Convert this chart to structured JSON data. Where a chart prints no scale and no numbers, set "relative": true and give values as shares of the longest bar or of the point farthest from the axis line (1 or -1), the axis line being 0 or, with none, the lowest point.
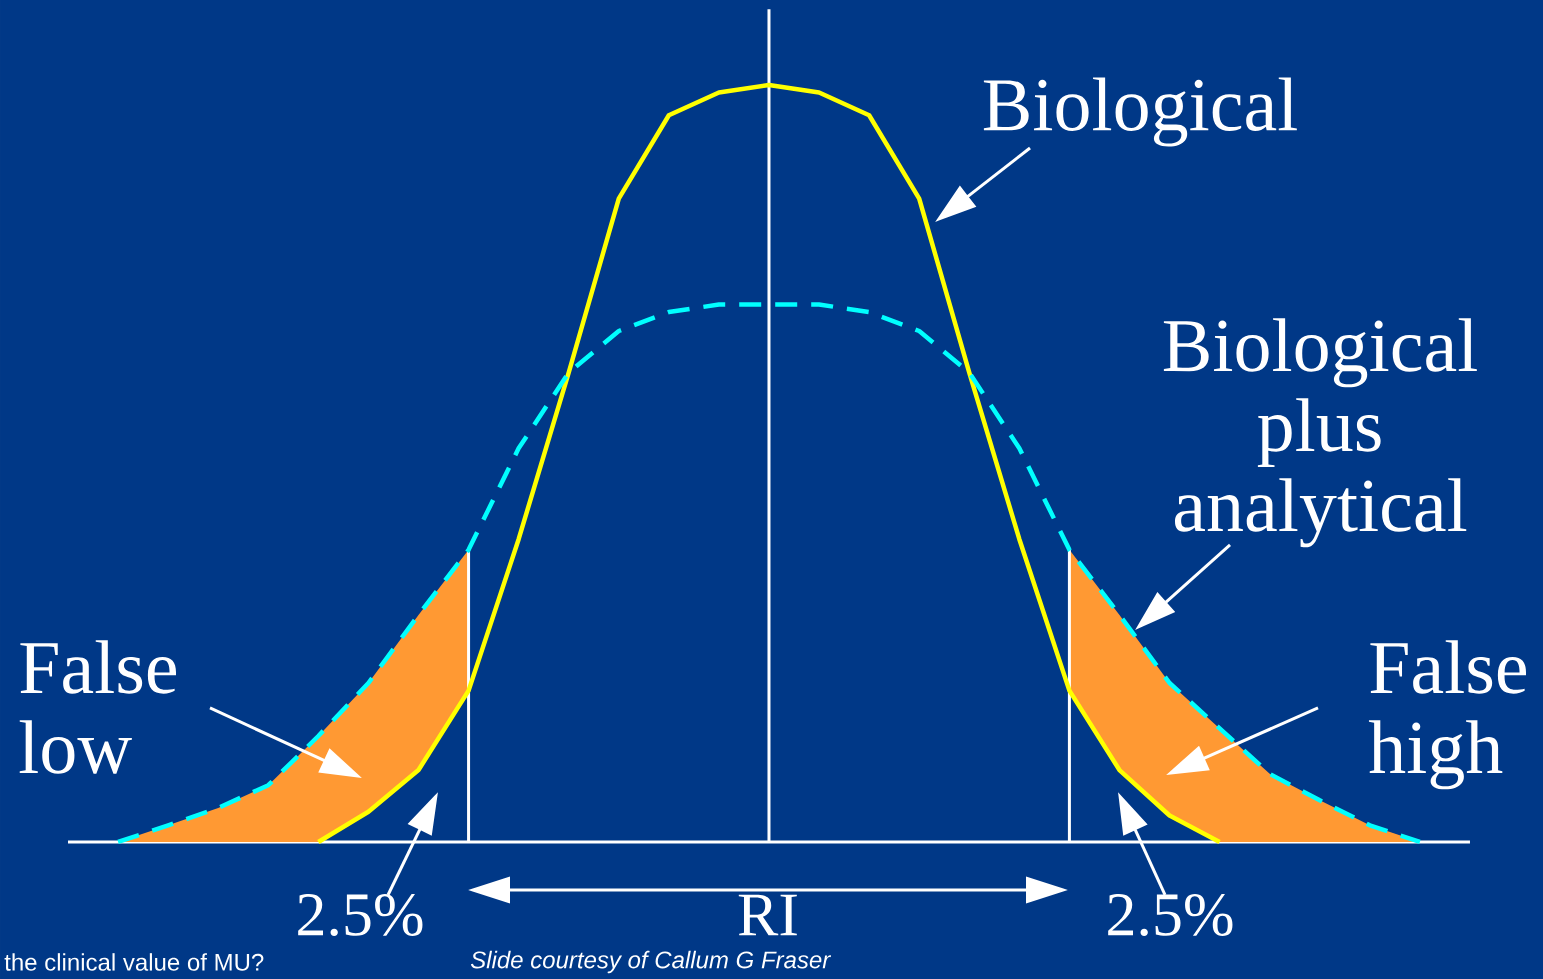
{
  "chart_data": {
    "type": "line",
    "relative": true,
    "categories": [
      null,
      null,
      null,
      null,
      null,
      null,
      null,
      null,
      null,
      null,
      null,
      null,
      null,
      null,
      null,
      null,
      null,
      null,
      null,
      null,
      null,
      null,
      null,
      null,
      null,
      null,
      null,
      null,
      null
    ],
    "series": [
      {
        "type": "area",
        "color": "#ff9933",
        "values": [
          null,
          0,
          0.022,
          0.045,
          0.075,
          0.14,
          0.21,
          0.3,
          0.386,
          null,
          null,
          null,
          null,
          null,
          null,
          null,
          null,
          null,
          null,
          null,
          0.386,
          0.3,
          0.21,
          0.15,
          0.09,
          0.055,
          0.022,
          0,
          null
        ]
      },
      {
        "color": "#ffff00",
        "line_style": "solid",
        "values": [
          null,
          null,
          null,
          null,
          null,
          0,
          0.04,
          0.095,
          0.2,
          0.4,
          0.62,
          0.85,
          0.96,
          0.99,
          1,
          0.99,
          0.96,
          0.85,
          0.62,
          0.4,
          0.2,
          0.095,
          0.035,
          0,
          null,
          null,
          null,
          null,
          null
        ]
      },
      {
        "color": "#00ffff",
        "line_style": "dashed",
        "values": [
          null,
          0,
          0.022,
          0.045,
          0.075,
          0.14,
          0.21,
          0.3,
          0.386,
          0.52,
          0.62,
          0.675,
          0.7,
          0.71,
          0.71,
          0.71,
          0.7,
          0.675,
          0.62,
          0.52,
          0.386,
          0.3,
          0.21,
          0.15,
          0.09,
          0.055,
          0.022,
          0,
          null
        ]
      }
    ],
    "annotations": [
      "Biological",
      "Biological plus analytical",
      "False low",
      "False high",
      "2.5%",
      "RI",
      "2.5%",
      "the clinical value of MU?",
      "Slide courtesy of Callum G Fraser"
    ]
  }
}
